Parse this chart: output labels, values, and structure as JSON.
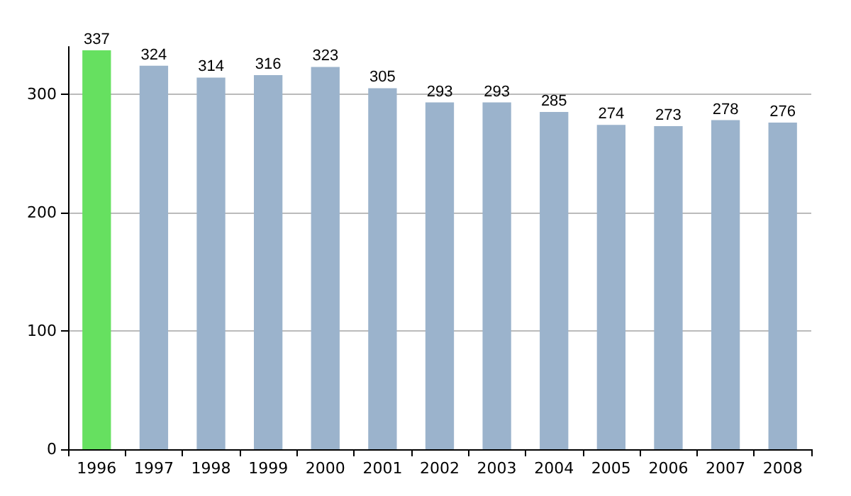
{
  "chart_data": {
    "type": "bar",
    "categories": [
      "1996",
      "1997",
      "1998",
      "1999",
      "2000",
      "2001",
      "2002",
      "2003",
      "2004",
      "2005",
      "2006",
      "2007",
      "2008"
    ],
    "values": [
      337,
      324,
      314,
      316,
      323,
      305,
      293,
      293,
      285,
      274,
      273,
      278,
      276
    ],
    "colors": [
      "#66e060",
      "#9bb3cc",
      "#9bb3cc",
      "#9bb3cc",
      "#9bb3cc",
      "#9bb3cc",
      "#9bb3cc",
      "#9bb3cc",
      "#9bb3cc",
      "#9bb3cc",
      "#9bb3cc",
      "#9bb3cc",
      "#9bb3cc"
    ],
    "ylim": [
      0,
      340
    ],
    "yticks": [
      0,
      100,
      200,
      300
    ],
    "grid": "y",
    "data_labels": true
  }
}
